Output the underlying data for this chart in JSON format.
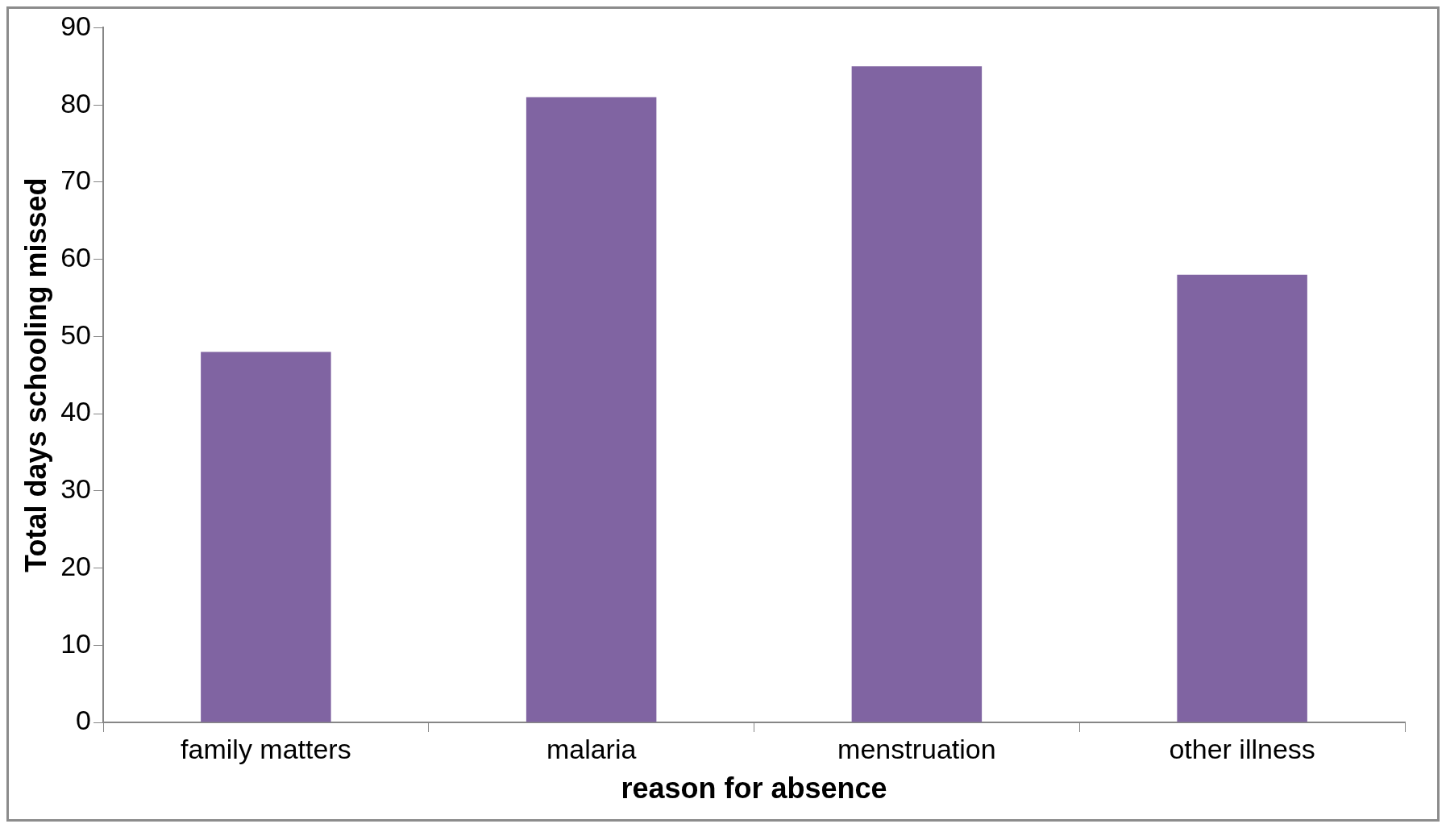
{
  "chart_data": {
    "type": "bar",
    "xlabel": "reason for absence",
    "ylabel": "Total days schooling missed",
    "categories": [
      "family matters",
      "malaria",
      "menstruation",
      "other illness"
    ],
    "values": [
      48,
      81,
      85,
      58
    ],
    "color": "#8064a2",
    "ylim": [
      0,
      90
    ],
    "yticks": [
      0,
      10,
      20,
      30,
      40,
      50,
      60,
      70,
      80,
      90
    ],
    "grid": false,
    "legend": false
  }
}
